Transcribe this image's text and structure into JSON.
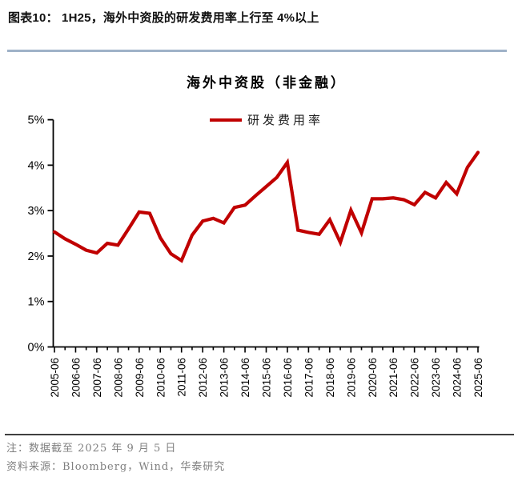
{
  "header": {
    "title": "图表10： 1H25，海外中资股的研发费用率上行至 4%以上"
  },
  "chart": {
    "title": "海外中资股（非金融）",
    "legend_label": "研发费用率"
  },
  "chart_data": {
    "type": "line",
    "title": "海外中资股（非金融）",
    "series_name": "研发费用率",
    "x": [
      "2005-06",
      "2005-12",
      "2006-06",
      "2006-12",
      "2007-06",
      "2007-12",
      "2008-06",
      "2008-12",
      "2009-06",
      "2009-12",
      "2010-06",
      "2010-12",
      "2011-06",
      "2011-12",
      "2012-06",
      "2012-12",
      "2013-06",
      "2013-12",
      "2014-06",
      "2014-12",
      "2015-06",
      "2015-12",
      "2016-06",
      "2016-12",
      "2017-06",
      "2017-12",
      "2018-06",
      "2018-12",
      "2019-06",
      "2019-12",
      "2020-06",
      "2020-12",
      "2021-06",
      "2021-12",
      "2022-06",
      "2022-12",
      "2023-06",
      "2023-12",
      "2024-06",
      "2024-12",
      "2025-06"
    ],
    "values": [
      2.53,
      2.38,
      2.26,
      2.13,
      2.07,
      2.28,
      2.24,
      2.6,
      2.97,
      2.94,
      2.4,
      2.05,
      1.9,
      2.46,
      2.77,
      2.83,
      2.73,
      3.07,
      3.12,
      3.33,
      3.53,
      3.73,
      4.06,
      2.57,
      2.52,
      2.48,
      2.8,
      2.3,
      3.01,
      2.51,
      3.26,
      3.26,
      3.28,
      3.24,
      3.13,
      3.4,
      3.28,
      3.62,
      3.37,
      3.95,
      4.28
    ],
    "x_tick_labels": [
      "2005-06",
      "2006-06",
      "2007-06",
      "2008-06",
      "2009-06",
      "2010-06",
      "2011-06",
      "2012-06",
      "2013-06",
      "2014-06",
      "2015-06",
      "2016-06",
      "2017-06",
      "2018-06",
      "2019-06",
      "2020-06",
      "2021-06",
      "2022-06",
      "2023-06",
      "2024-06",
      "2025-06"
    ],
    "y_ticks": [
      "0%",
      "1%",
      "2%",
      "3%",
      "4%",
      "5%"
    ],
    "ylim": [
      0,
      5
    ],
    "grid": false,
    "legend_position": "top",
    "line_color": "#c00000"
  },
  "footer": {
    "note": "注：数据截至 2025 年 9 月 5 日",
    "source": "资料来源：Bloomberg，Wind，华泰研究"
  },
  "colors": {
    "accent_red": "#c00000",
    "divider_blue": "#9fb2c8",
    "footer_gray": "#7f7f7f",
    "axis_black": "#000000"
  }
}
